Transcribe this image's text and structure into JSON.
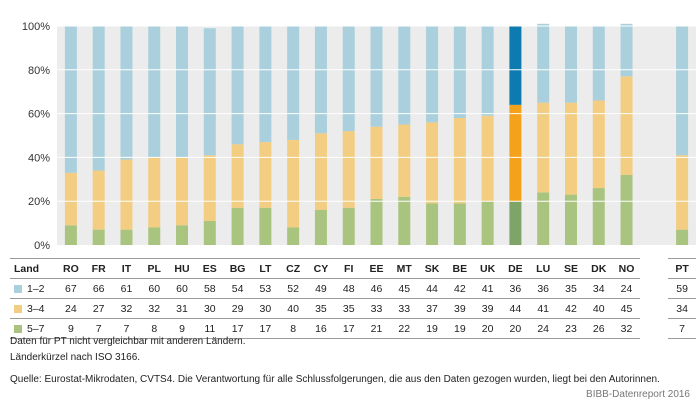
{
  "chart_data": {
    "type": "stacked-bar",
    "y_axis": {
      "min": 0,
      "max": 100,
      "ticks": [
        "0%",
        "20%",
        "40%",
        "60%",
        "80%",
        "100%"
      ]
    },
    "table_header": "Land",
    "categories": [
      "RO",
      "FR",
      "IT",
      "PL",
      "HU",
      "ES",
      "BG",
      "LT",
      "CZ",
      "CY",
      "FI",
      "EE",
      "MT",
      "SK",
      "BE",
      "UK",
      "DE",
      "LU",
      "SE",
      "DK",
      "NO",
      "",
      "PT"
    ],
    "highlight": "DE",
    "series": [
      {
        "name": "5–7",
        "color": "#a9c47f",
        "highlight_color": "#7fa468",
        "values": [
          9,
          7,
          7,
          8,
          9,
          11,
          17,
          17,
          8,
          16,
          17,
          21,
          22,
          19,
          19,
          20,
          20,
          24,
          23,
          26,
          32,
          null,
          7
        ]
      },
      {
        "name": "3–4",
        "color": "#f3cd81",
        "highlight_color": "#f4a21b",
        "values": [
          24,
          27,
          32,
          32,
          31,
          30,
          29,
          30,
          40,
          35,
          35,
          33,
          33,
          37,
          39,
          39,
          44,
          41,
          42,
          40,
          45,
          null,
          34
        ]
      },
      {
        "name": "1–2",
        "color": "#a9d0dc",
        "highlight_color": "#0e7bb0",
        "values": [
          67,
          66,
          61,
          60,
          60,
          58,
          54,
          53,
          52,
          49,
          48,
          46,
          45,
          44,
          42,
          41,
          36,
          36,
          35,
          34,
          24,
          null,
          59
        ]
      }
    ]
  },
  "notes": {
    "line1": "Daten für PT nicht vergleichbar mit anderen Ländern.",
    "line2": "Länderkürzel nach ISO 3166.",
    "source": "Quelle: Eurostat-Mikrodaten, CVTS4. Die Verantwortung für alle Schlussfolgerungen, die aus den Daten gezogen wurden, liegt bei den Autorinnen.",
    "report": "BIBB-Datenreport 2016"
  }
}
